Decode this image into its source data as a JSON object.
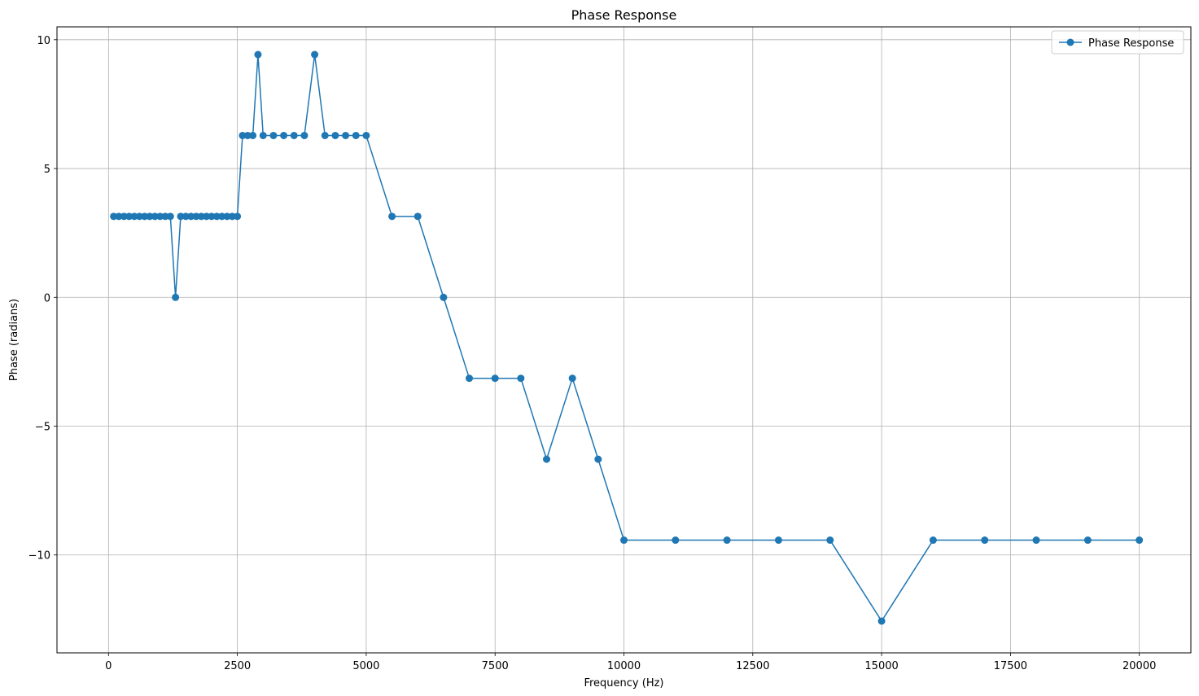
{
  "chart_data": {
    "type": "line",
    "title": "Phase Response",
    "xlabel": "Frequency (Hz)",
    "ylabel": "Phase (radians)",
    "xlim": [
      -1000,
      21000
    ],
    "ylim": [
      -13.8,
      10.5
    ],
    "xticks": [
      0,
      2500,
      5000,
      7500,
      10000,
      12500,
      15000,
      17500,
      20000
    ],
    "yticks": [
      10,
      5,
      0,
      -5,
      -10
    ],
    "ytick_labels": [
      "10",
      "5",
      "0",
      "−5",
      "−10"
    ],
    "grid": true,
    "legend_position": "top-right",
    "series": [
      {
        "name": "Phase Response",
        "color": "#1f77b4",
        "marker": "circle",
        "x": [
          100,
          200,
          300,
          400,
          500,
          600,
          700,
          800,
          900,
          1000,
          1100,
          1200,
          1300,
          1400,
          1500,
          1600,
          1700,
          1800,
          1900,
          2000,
          2100,
          2200,
          2300,
          2400,
          2500,
          2600,
          2700,
          2800,
          2900,
          3000,
          3200,
          3400,
          3600,
          3800,
          4000,
          4200,
          4400,
          4600,
          4800,
          5000,
          5500,
          6000,
          6500,
          7000,
          7500,
          8000,
          8500,
          9000,
          9500,
          10000,
          11000,
          12000,
          13000,
          14000,
          15000,
          16000,
          17000,
          18000,
          19000,
          20000
        ],
        "y": [
          3.1416,
          3.1416,
          3.1416,
          3.1416,
          3.1416,
          3.1416,
          3.1416,
          3.1416,
          3.1416,
          3.1416,
          3.1416,
          3.1416,
          0,
          3.1416,
          3.1416,
          3.1416,
          3.1416,
          3.1416,
          3.1416,
          3.1416,
          3.1416,
          3.1416,
          3.1416,
          3.1416,
          3.1416,
          6.2832,
          6.2832,
          6.2832,
          9.4248,
          6.2832,
          6.2832,
          6.2832,
          6.2832,
          6.2832,
          9.4248,
          6.2832,
          6.2832,
          6.2832,
          6.2832,
          6.2832,
          3.1416,
          3.1416,
          0,
          -3.1416,
          -3.1416,
          -3.1416,
          -6.2832,
          -3.1416,
          -6.2832,
          -9.4248,
          -9.4248,
          -9.4248,
          -9.4248,
          -9.4248,
          -12.5664,
          -9.4248,
          -9.4248,
          -9.4248,
          -9.4248,
          -9.4248
        ]
      }
    ]
  }
}
